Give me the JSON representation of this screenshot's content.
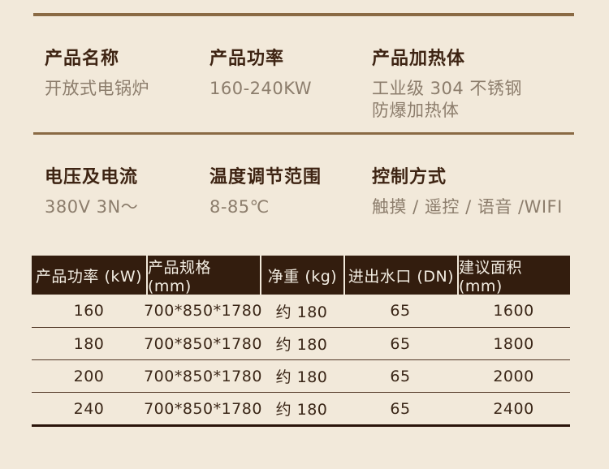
{
  "page": {
    "background_color": "#f2e9da",
    "rule_color": "#8a6a44",
    "header_bg_color": "#331d0e",
    "header_text_color": "#f3ede2",
    "label_color": "#3e2413",
    "value_color": "#8c7d6c",
    "cell_color": "#3a2617"
  },
  "specs": {
    "row1": [
      {
        "label": "产品名称",
        "value": "开放式电锅炉"
      },
      {
        "label": "产品功率",
        "value": "160-240KW"
      },
      {
        "label": "产品加热体",
        "value": "工业级 304 不锈钢\n防爆加热体"
      }
    ],
    "row2": [
      {
        "label": "电压及电流",
        "value": "380V 3N～"
      },
      {
        "label": "温度调节范围",
        "value": "8-85℃"
      },
      {
        "label": "控制方式",
        "value": "触摸 / 遥控 / 语音 /WIFI"
      }
    ]
  },
  "table": {
    "columns": [
      "产品功率 (kW)",
      "产品规格 (mm)",
      "净重 (kg)",
      "进出水口 (DN)",
      "建议面积 (mm)"
    ],
    "rows": [
      [
        "160",
        "700*850*1780",
        "约 180",
        "65",
        "1600"
      ],
      [
        "180",
        "700*850*1780",
        "约 180",
        "65",
        "1800"
      ],
      [
        "200",
        "700*850*1780",
        "约 180",
        "65",
        "2000"
      ],
      [
        "240",
        "700*850*1780",
        "约 180",
        "65",
        "2400"
      ]
    ]
  }
}
